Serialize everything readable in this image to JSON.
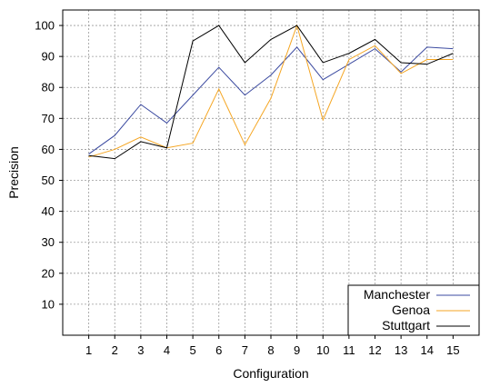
{
  "chart_data": {
    "type": "line",
    "title": "",
    "xlabel": "Configuration",
    "ylabel": "Precision",
    "x": [
      1,
      2,
      3,
      4,
      5,
      6,
      7,
      8,
      9,
      10,
      11,
      12,
      13,
      14,
      15
    ],
    "xlim": [
      0,
      16
    ],
    "ylim": [
      0,
      105
    ],
    "yticks": [
      10,
      20,
      30,
      40,
      50,
      60,
      70,
      80,
      90,
      100
    ],
    "grid": true,
    "legend_position": "bottom-right",
    "series": [
      {
        "name": "Manchester",
        "color": "#3b4aa0",
        "values": [
          58.5,
          64.5,
          74.5,
          68.5,
          77.5,
          86.5,
          77.5,
          84,
          93,
          82.5,
          87.5,
          92.5,
          85,
          93,
          92.5
        ]
      },
      {
        "name": "Genoa",
        "color": "#f5a623",
        "values": [
          57.5,
          60,
          64,
          60.5,
          62,
          79.5,
          61.5,
          76.5,
          100,
          69.5,
          89,
          93.5,
          84.5,
          89,
          89
        ]
      },
      {
        "name": "Stuttgart",
        "color": "#000000",
        "values": [
          58,
          57,
          62.5,
          60.5,
          95,
          100,
          88,
          95.5,
          100,
          88,
          91,
          95.5,
          88,
          87.5,
          91
        ]
      }
    ]
  }
}
